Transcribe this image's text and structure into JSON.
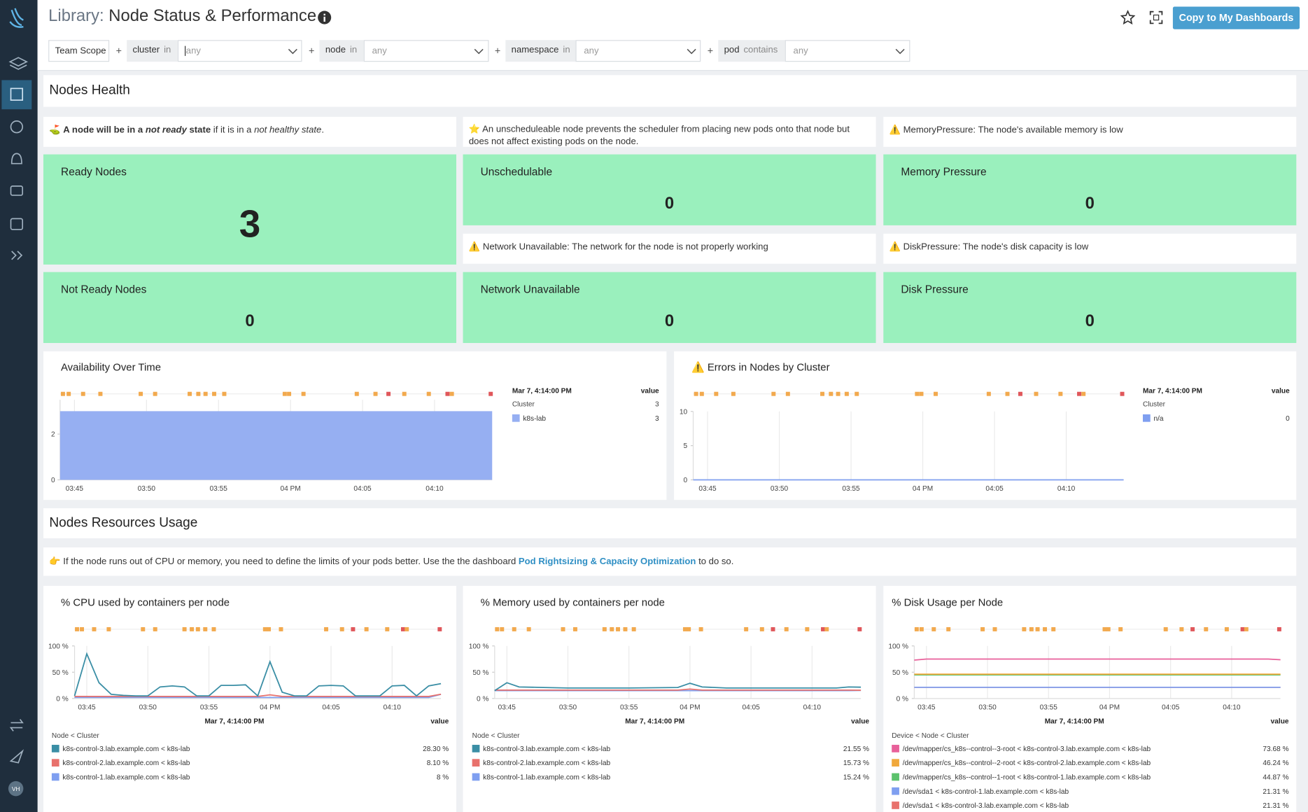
{
  "header": {
    "title_prefix": "Library:",
    "title": "Node Status & Performance",
    "button": "Copy to My Dashboards",
    "avatar": "VH"
  },
  "filters": {
    "scope": "Team Scope",
    "joiner": "+",
    "items": [
      {
        "key": "cluster",
        "op": "in",
        "value": "any"
      },
      {
        "key": "node",
        "op": "in",
        "value": "any"
      },
      {
        "key": "namespace",
        "op": "in",
        "value": "any"
      },
      {
        "key": "pod",
        "op": "contains",
        "value": "any"
      }
    ]
  },
  "health": {
    "title": "Nodes Health",
    "notes": [
      {
        "icon": "⛳",
        "parts": [
          "A node will be in a ",
          "not ready",
          " state",
          " if it is in a ",
          "not healthy state",
          "."
        ]
      },
      {
        "icon": "⭐",
        "text": "An unscheduleable node prevents the scheduler from placing new pods onto that node but does not affect existing pods on the node."
      },
      {
        "icon": "⚠️",
        "text": "MemoryPressure: The node's available memory is low"
      },
      {
        "icon": "⚠️",
        "text": "Network Unavailable: The network for the node is not properly working"
      },
      {
        "icon": "⚠️",
        "text": "DiskPressure: The node's disk capacity is low"
      }
    ],
    "stats": [
      {
        "label": "Ready Nodes",
        "value": 3
      },
      {
        "label": "Unschedulable",
        "value": 0
      },
      {
        "label": "Memory Pressure",
        "value": 0
      },
      {
        "label": "Not Ready Nodes",
        "value": 0
      },
      {
        "label": "Network Unavailable",
        "value": 0
      },
      {
        "label": "Disk Pressure",
        "value": 0
      }
    ]
  },
  "resources": {
    "title": "Nodes Resources Usage",
    "note": {
      "icon": "👉",
      "parts": [
        "If the node runs out of CPU or memory, you need to define the limits of your pods better. Use the the dashboard ",
        "Pod Rightsizing & Capacity Optimization",
        " to do so."
      ]
    }
  },
  "events": [
    {
      "x": 944.2,
      "color": "#f2a94e"
    },
    {
      "x": 944.6,
      "color": "#f2a94e"
    },
    {
      "x": 945.6,
      "color": "#f2a94e"
    },
    {
      "x": 946.8,
      "color": "#f2a94e"
    },
    {
      "x": 949.6,
      "color": "#f2a94e"
    },
    {
      "x": 950.6,
      "color": "#f2a94e"
    },
    {
      "x": 953.0,
      "color": "#f2a94e"
    },
    {
      "x": 953.6,
      "color": "#f2a94e"
    },
    {
      "x": 954.1,
      "color": "#f2a94e"
    },
    {
      "x": 954.7,
      "color": "#f2a94e"
    },
    {
      "x": 955.4,
      "color": "#f2a94e"
    },
    {
      "x": 959.6,
      "color": "#f2a94e"
    },
    {
      "x": 959.9,
      "color": "#f2a94e"
    },
    {
      "x": 960.9,
      "color": "#f2a94e"
    },
    {
      "x": 964.6,
      "color": "#f2a94e"
    },
    {
      "x": 965.9,
      "color": "#f2a94e"
    },
    {
      "x": 966.8,
      "color": "#e0575b"
    },
    {
      "x": 967.9,
      "color": "#f2a94e"
    },
    {
      "x": 969.6,
      "color": "#f2a94e"
    },
    {
      "x": 970.9,
      "color": "#e0575b"
    },
    {
      "x": 971.2,
      "color": "#f2a94e"
    },
    {
      "x": 973.9,
      "color": "#e0575b"
    }
  ],
  "charts": {
    "availability": {
      "type": "area",
      "title": "Availability Over Time",
      "x": [
        944,
        974
      ],
      "xlim": [
        944,
        974
      ],
      "xticks": [
        {
          "value": 945,
          "label": "03:45"
        },
        {
          "value": 950,
          "label": "03:50"
        },
        {
          "value": 955,
          "label": "03:55"
        },
        {
          "value": 960,
          "label": "04 PM"
        },
        {
          "value": 965,
          "label": "04:05"
        },
        {
          "value": 970,
          "label": "04:10"
        }
      ],
      "ylim": [
        0,
        3.5
      ],
      "yticks": [
        0,
        2
      ],
      "legend": {
        "time": "Mar 7, 4:14:00 PM",
        "value_header": "value",
        "group": "Cluster",
        "group_value": 3
      },
      "series": [
        {
          "name": "k8s-lab",
          "color": "#96aff2",
          "values": [
            3,
            3
          ]
        }
      ]
    },
    "errors": {
      "type": "line",
      "title": "⚠️ Errors in Nodes by Cluster",
      "x": [
        944,
        974
      ],
      "xlim": [
        944,
        974
      ],
      "xticks": [
        {
          "value": 945,
          "label": "03:45"
        },
        {
          "value": 950,
          "label": "03:50"
        },
        {
          "value": 955,
          "label": "03:55"
        },
        {
          "value": 960,
          "label": "04 PM"
        },
        {
          "value": 965,
          "label": "04:05"
        },
        {
          "value": 970,
          "label": "04:10"
        }
      ],
      "ylim": [
        0,
        10
      ],
      "yticks": [
        0,
        5,
        10
      ],
      "legend": {
        "time": "Mar 7, 4:14:00 PM",
        "value_header": "value",
        "group": "Cluster"
      },
      "series": [
        {
          "name": "n/a",
          "color": "#7f9ff0",
          "values": [
            0,
            0
          ]
        }
      ]
    },
    "cpu": {
      "type": "line",
      "title": "% CPU used by containers per node",
      "x": [
        944,
        945,
        946,
        947,
        948,
        949,
        950,
        951,
        952,
        953,
        954,
        955,
        956,
        957,
        958,
        959,
        960,
        961,
        962,
        963,
        964,
        965,
        966,
        967,
        968,
        969,
        970,
        971,
        972,
        973,
        974
      ],
      "xlim": [
        944,
        974
      ],
      "xticks": [
        {
          "value": 945,
          "label": "03:45"
        },
        {
          "value": 950,
          "label": "03:50"
        },
        {
          "value": 955,
          "label": "03:55"
        },
        {
          "value": 960,
          "label": "04 PM"
        },
        {
          "value": 965,
          "label": "04:05"
        },
        {
          "value": 970,
          "label": "04:10"
        }
      ],
      "ylim": [
        0,
        100
      ],
      "yticks": [
        {
          "value": 0,
          "label": "0 %"
        },
        {
          "value": 50,
          "label": "50 %"
        },
        {
          "value": 100,
          "label": "100 %"
        }
      ],
      "legend": {
        "time": "Mar 7, 4:14:00 PM",
        "value_header": "value",
        "group": "Node < Cluster"
      },
      "series": [
        {
          "name": "k8s-control-3.lab.example.com < k8s-lab",
          "color": "#3a8ea5",
          "values": [
            5,
            85,
            30,
            8,
            6,
            5,
            5,
            22,
            24,
            22,
            5,
            5,
            25,
            25,
            26,
            5,
            70,
            12,
            5,
            5,
            24,
            25,
            24,
            5,
            5,
            5,
            24,
            25,
            5,
            24,
            28.3
          ],
          "value_label": "28.30 %"
        },
        {
          "name": "k8s-control-2.lab.example.com < k8s-lab",
          "color": "#e8716c",
          "values": [
            4,
            4,
            4,
            4,
            4,
            4,
            4,
            4,
            4,
            4,
            4,
            4,
            4,
            4,
            4,
            4,
            7,
            4,
            4,
            4,
            4,
            4,
            4,
            4,
            4,
            4,
            4,
            4,
            4,
            4,
            8.1
          ],
          "value_label": "8.10 %"
        },
        {
          "name": "k8s-control-1.lab.example.com < k8s-lab",
          "color": "#7f9ff0",
          "values": [
            2,
            2,
            2,
            2,
            2,
            2,
            2,
            2,
            2,
            2,
            2,
            2,
            2,
            2,
            2,
            2,
            2,
            2,
            2,
            2,
            2,
            2,
            2,
            2,
            2,
            2,
            2,
            2,
            2,
            2,
            8
          ],
          "value_label": "8 %"
        }
      ]
    },
    "memory": {
      "type": "line",
      "title": "% Memory used by containers per node",
      "x": [
        944,
        945,
        946,
        948,
        950,
        955,
        959,
        960,
        961,
        963,
        966,
        970,
        972,
        973,
        974
      ],
      "xlim": [
        944,
        974
      ],
      "xticks": [
        {
          "value": 945,
          "label": "03:45"
        },
        {
          "value": 950,
          "label": "03:50"
        },
        {
          "value": 955,
          "label": "03:55"
        },
        {
          "value": 960,
          "label": "04 PM"
        },
        {
          "value": 965,
          "label": "04:05"
        },
        {
          "value": 970,
          "label": "04:10"
        }
      ],
      "ylim": [
        0,
        100
      ],
      "yticks": [
        {
          "value": 0,
          "label": "0 %"
        },
        {
          "value": 50,
          "label": "50 %"
        },
        {
          "value": 100,
          "label": "100 %"
        }
      ],
      "legend": {
        "time": "Mar 7, 4:14:00 PM",
        "value_header": "value",
        "group": "Node < Cluster"
      },
      "series": [
        {
          "name": "k8s-control-3.lab.example.com < k8s-lab",
          "color": "#3a8ea5",
          "values": [
            15,
            30,
            22,
            21,
            20,
            20,
            21,
            29,
            22,
            20,
            20,
            20,
            20,
            22,
            21.55
          ],
          "value_label": "21.55 %"
        },
        {
          "name": "k8s-control-2.lab.example.com < k8s-lab",
          "color": "#e8716c",
          "values": [
            16,
            16,
            16,
            16,
            16,
            16,
            16,
            18,
            16,
            16,
            16,
            16,
            16,
            16,
            15.73
          ],
          "value_label": "15.73 %"
        },
        {
          "name": "k8s-control-1.lab.example.com < k8s-lab",
          "color": "#7f9ff0",
          "values": [
            15,
            15,
            15,
            15,
            15,
            15,
            15,
            15,
            15,
            15,
            15,
            15,
            15,
            15,
            15.24
          ],
          "value_label": "15.24 %"
        }
      ]
    },
    "disk": {
      "type": "line",
      "title": "% Disk Usage per Node",
      "x": [
        944,
        945,
        946,
        960,
        973,
        974
      ],
      "xlim": [
        944,
        974
      ],
      "xticks": [
        {
          "value": 945,
          "label": "03:45"
        },
        {
          "value": 950,
          "label": "03:50"
        },
        {
          "value": 955,
          "label": "03:55"
        },
        {
          "value": 960,
          "label": "04 PM"
        },
        {
          "value": 965,
          "label": "04:05"
        },
        {
          "value": 970,
          "label": "04:10"
        }
      ],
      "ylim": [
        0,
        100
      ],
      "yticks": [
        {
          "value": 0,
          "label": "0 %"
        },
        {
          "value": 50,
          "label": "50 %"
        },
        {
          "value": 100,
          "label": "100 %"
        }
      ],
      "legend": {
        "time": "Mar 7, 4:14:00 PM",
        "value_header": "value",
        "group": "Device < Node < Cluster"
      },
      "series": [
        {
          "name": "/dev/mapper/cs_k8s--control--3-root < k8s-control-3.lab.example.com < k8s-lab",
          "color": "#e8609a",
          "values": [
            73,
            75,
            75,
            75,
            75,
            73.68
          ],
          "value_label": "73.68 %"
        },
        {
          "name": "/dev/mapper/cs_k8s--control--2-root < k8s-control-2.lab.example.com < k8s-lab",
          "color": "#f0a83c",
          "values": [
            46.24,
            46.24,
            46.24,
            46.24,
            46.24,
            46.24
          ],
          "value_label": "46.24 %"
        },
        {
          "name": "/dev/mapper/cs_k8s--control--1-root < k8s-control-1.lab.example.com < k8s-lab",
          "color": "#5cc26c",
          "values": [
            44.87,
            44.87,
            44.87,
            44.87,
            44.87,
            44.87
          ],
          "value_label": "44.87 %"
        },
        {
          "name": "/dev/sda1 < k8s-control-1.lab.example.com < k8s-lab",
          "color": "#7f9ff0",
          "values": [
            21.31,
            21.31,
            21.31,
            21.31,
            21.31,
            21.31
          ],
          "value_label": "21.31 %"
        },
        {
          "name": "/dev/sda1 < k8s-control-3.lab.example.com < k8s-lab",
          "color": "#e8716c",
          "values": [
            21.31,
            21.31,
            21.31,
            21.31,
            21.31,
            21.31
          ],
          "value_label": "21.31 %"
        }
      ]
    }
  }
}
